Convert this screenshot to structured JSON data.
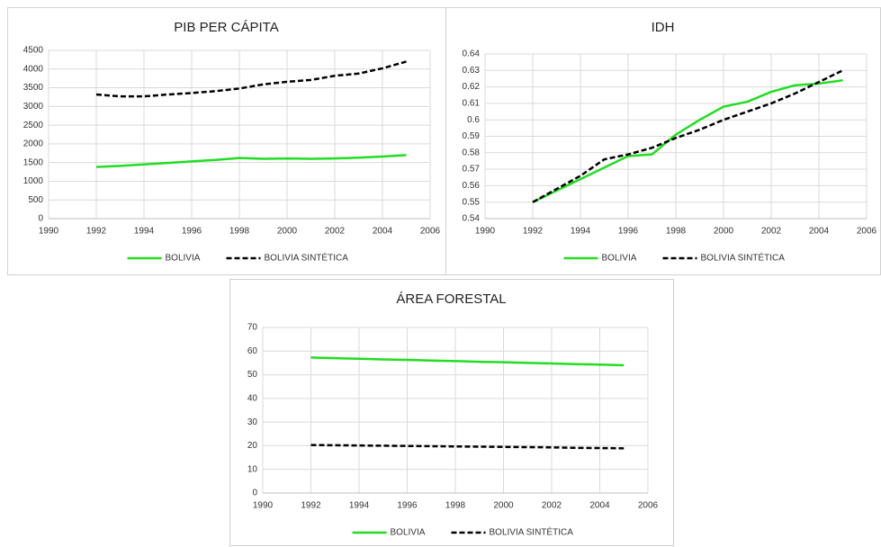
{
  "chart_data": [
    {
      "type": "line",
      "title": "PIB PER CÁPITA",
      "x": [
        1992,
        1993,
        1994,
        1995,
        1996,
        1997,
        1998,
        1999,
        2000,
        2001,
        2002,
        2003,
        2004,
        2005
      ],
      "series": [
        {
          "name": "BOLIVIA",
          "color": "#22dd22",
          "style": "solid",
          "values": [
            1380,
            1410,
            1450,
            1490,
            1530,
            1570,
            1620,
            1600,
            1610,
            1600,
            1610,
            1630,
            1660,
            1700
          ]
        },
        {
          "name": "BOLIVIA SINTÉTICA",
          "color": "#000000",
          "style": "dashed",
          "values": [
            3320,
            3270,
            3270,
            3320,
            3360,
            3410,
            3480,
            3590,
            3660,
            3710,
            3820,
            3880,
            4020,
            4200
          ]
        }
      ],
      "xlim": [
        1990,
        2006
      ],
      "xticks": [
        1990,
        1992,
        1994,
        1996,
        1998,
        2000,
        2002,
        2004,
        2006
      ],
      "ylim": [
        0,
        4500
      ],
      "yticks": [
        0,
        500,
        1000,
        1500,
        2000,
        2500,
        3000,
        3500,
        4000,
        4500
      ],
      "grid": true,
      "legend": "bottom"
    },
    {
      "type": "line",
      "title": "IDH",
      "x": [
        1992,
        1993,
        1994,
        1995,
        1996,
        1997,
        1998,
        1999,
        2000,
        2001,
        2002,
        2003,
        2004,
        2005
      ],
      "series": [
        {
          "name": "BOLIVIA",
          "color": "#22dd22",
          "style": "solid",
          "values": [
            0.55,
            0.557,
            0.564,
            0.571,
            0.578,
            0.579,
            0.591,
            0.6,
            0.608,
            0.611,
            0.617,
            0.621,
            0.622,
            0.624
          ]
        },
        {
          "name": "BOLIVIA SINTÉTICA",
          "color": "#000000",
          "style": "dashed",
          "values": [
            0.55,
            0.558,
            0.566,
            0.576,
            0.579,
            0.583,
            0.589,
            0.594,
            0.6,
            0.605,
            0.61,
            0.616,
            0.623,
            0.63
          ]
        }
      ],
      "xlim": [
        1990,
        2006
      ],
      "xticks": [
        1990,
        1992,
        1994,
        1996,
        1998,
        2000,
        2002,
        2004,
        2006
      ],
      "ylim": [
        0.54,
        0.64
      ],
      "yticks": [
        0.54,
        0.55,
        0.56,
        0.57,
        0.58,
        0.59,
        0.6,
        0.61,
        0.62,
        0.63,
        0.64
      ],
      "grid": true,
      "legend": "bottom"
    },
    {
      "type": "line",
      "title": "ÁREA FORESTAL",
      "x": [
        1992,
        1993,
        1994,
        1995,
        1996,
        1997,
        1998,
        1999,
        2000,
        2001,
        2002,
        2003,
        2004,
        2005
      ],
      "series": [
        {
          "name": "BOLIVIA",
          "color": "#22dd22",
          "style": "solid",
          "values": [
            57.3,
            57.0,
            56.8,
            56.5,
            56.3,
            56.0,
            55.8,
            55.5,
            55.3,
            55.0,
            54.8,
            54.5,
            54.3,
            54.0
          ]
        },
        {
          "name": "BOLIVIA SINTÉTICA",
          "color": "#000000",
          "style": "dashed",
          "values": [
            20.3,
            20.2,
            20.1,
            20.0,
            19.9,
            19.8,
            19.7,
            19.6,
            19.5,
            19.4,
            19.3,
            19.1,
            19.0,
            18.9
          ]
        }
      ],
      "xlim": [
        1990,
        2006
      ],
      "xticks": [
        1990,
        1992,
        1994,
        1996,
        1998,
        2000,
        2002,
        2004,
        2006
      ],
      "ylim": [
        0,
        70
      ],
      "yticks": [
        0,
        10,
        20,
        30,
        40,
        50,
        60,
        70
      ],
      "grid": true,
      "legend": "bottom"
    }
  ]
}
